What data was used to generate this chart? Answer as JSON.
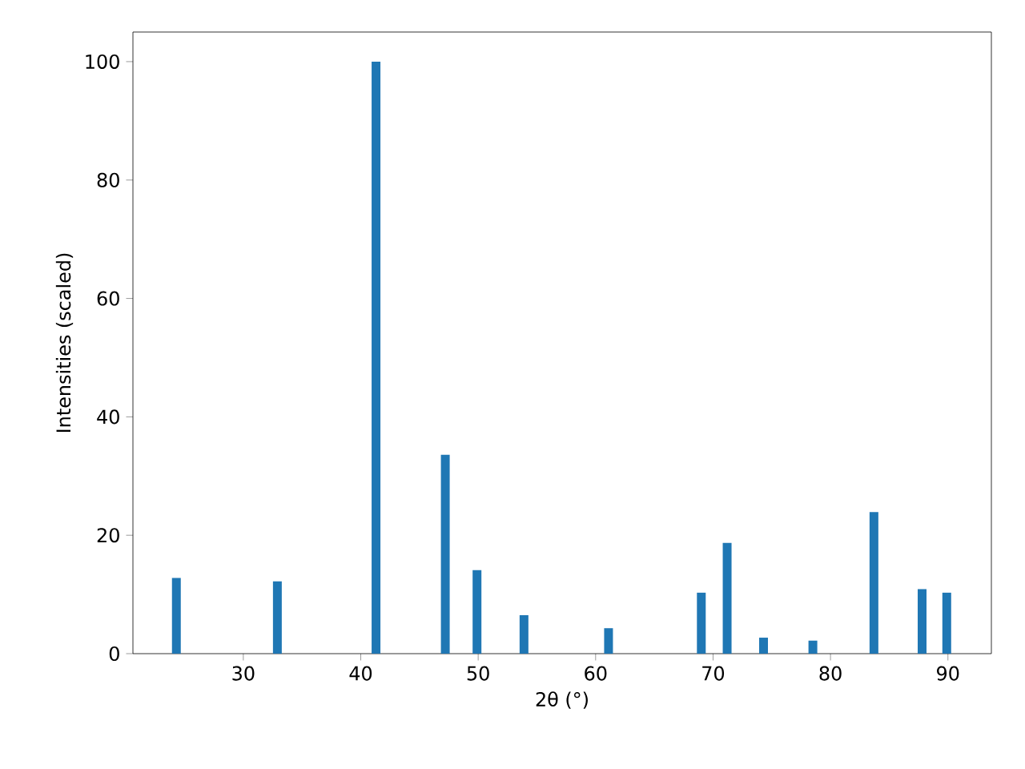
{
  "chart_data": {
    "type": "bar",
    "xlabel": "2θ (°)",
    "ylabel": "Intensities (scaled)",
    "x": [
      24.3,
      32.9,
      41.3,
      47.2,
      49.9,
      53.9,
      61.1,
      69.0,
      71.2,
      74.3,
      78.5,
      83.7,
      87.8,
      89.9
    ],
    "values": [
      12.8,
      12.2,
      100,
      33.6,
      14.1,
      6.5,
      4.3,
      10.3,
      18.7,
      2.7,
      2.2,
      23.9,
      10.9,
      10.3
    ],
    "color": "#1f77b4",
    "xlim": [
      20.6,
      93.7
    ],
    "ylim": [
      0,
      105
    ],
    "xticks": [
      30,
      40,
      50,
      60,
      70,
      80,
      90
    ],
    "yticks": [
      0,
      20,
      40,
      60,
      80,
      100
    ],
    "grid": false
  }
}
